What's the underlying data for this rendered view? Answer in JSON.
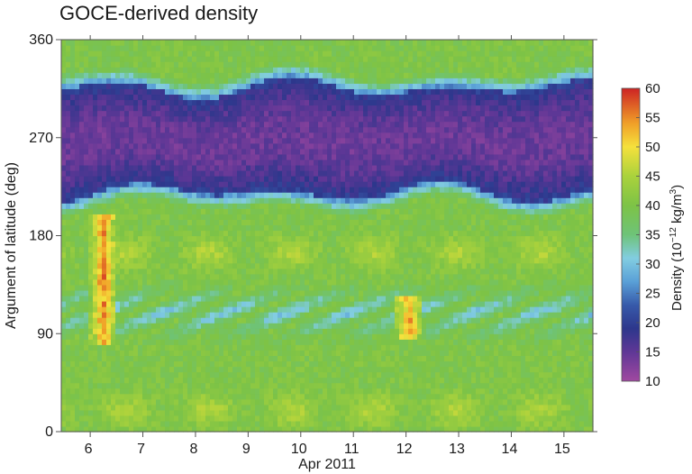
{
  "chart_data": {
    "type": "heatmap",
    "title": "GOCE-derived density",
    "xlabel": "Apr 2011",
    "ylabel": "Argument of latitude (deg)",
    "x_tick_labels": [
      "6",
      "7",
      "8",
      "9",
      "10",
      "11",
      "12",
      "13",
      "14",
      "15"
    ],
    "xlim": [
      5.45,
      15.55
    ],
    "y_ticks": [
      0,
      90,
      180,
      270,
      360
    ],
    "ylim": [
      0,
      360
    ],
    "colorbar": {
      "label_main": "Density (10",
      "label_exp": "−12",
      "label_unit": " kg/m",
      "label_unit_exp": "3",
      "label_close": ")",
      "ticks": [
        10,
        15,
        20,
        25,
        30,
        35,
        40,
        45,
        50,
        55,
        60
      ],
      "range": [
        10,
        60
      ]
    },
    "density_model": {
      "night_trough_center_deg": 268,
      "night_trough_halfwidth_deg": 48,
      "night_trough_min_density": 14,
      "background_density": 40,
      "secondary_trough_center_deg": 110,
      "secondary_trough_density": 31,
      "storm_events": [
        {
          "day": 6.25,
          "aol_range": [
            90,
            190
          ],
          "peak_density": 58
        },
        {
          "day": 12.05,
          "aol_range": [
            95,
            115
          ],
          "peak_density": 57
        }
      ],
      "daytime_peak_aol_deg": [
        20,
        165
      ],
      "daytime_peak_density": 47
    }
  }
}
